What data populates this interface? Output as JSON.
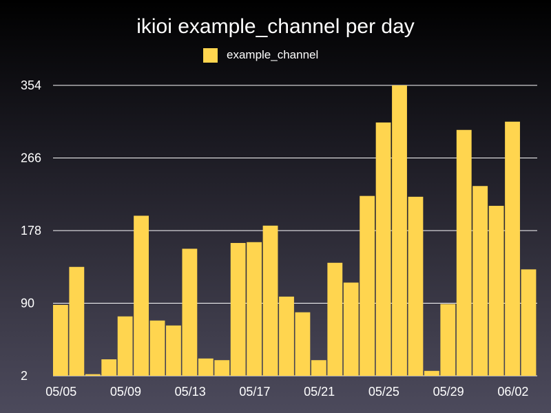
{
  "chart_data": {
    "type": "bar",
    "title": "ikioi example_channel per day",
    "xlabel": "",
    "ylabel": "",
    "ylim": [
      2,
      354
    ],
    "yticks": [
      "2",
      "90",
      "178",
      "266",
      "354"
    ],
    "xtick_labels": [
      "05/05",
      "05/09",
      "05/13",
      "05/17",
      "05/21",
      "05/25",
      "05/29",
      "06/02"
    ],
    "categories": [
      "05/05",
      "05/06",
      "05/07",
      "05/08",
      "05/09",
      "05/10",
      "05/11",
      "05/12",
      "05/13",
      "05/14",
      "05/15",
      "05/16",
      "05/17",
      "05/18",
      "05/19",
      "05/20",
      "05/21",
      "05/22",
      "05/23",
      "05/24",
      "05/25",
      "05/26",
      "05/27",
      "05/28",
      "05/29",
      "05/30",
      "05/31",
      "06/01",
      "06/02",
      "06/03"
    ],
    "series": [
      {
        "name": "example_channel",
        "color": "#ffd54f",
        "values": [
          88,
          134,
          4,
          22,
          74,
          196,
          69,
          63,
          156,
          23,
          21,
          163,
          164,
          184,
          98,
          79,
          21,
          139,
          115,
          220,
          309,
          354,
          219,
          8,
          89,
          300,
          232,
          208,
          310,
          131
        ]
      }
    ],
    "grid": true,
    "legend": "top-center"
  }
}
